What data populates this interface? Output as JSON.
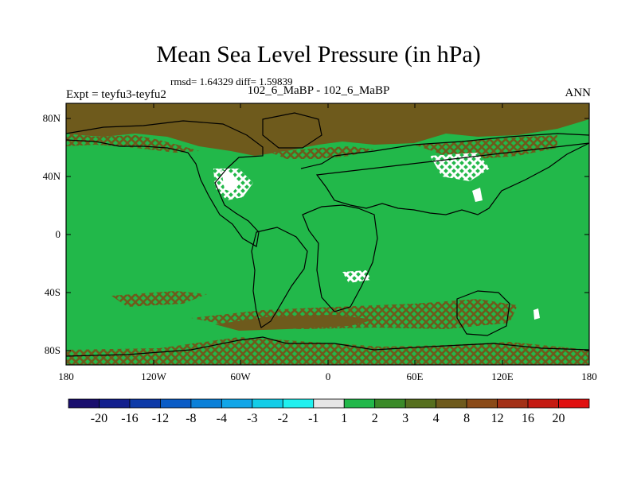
{
  "title": "Mean Sea Level Pressure (in hPa)",
  "stats": "rmsd= 1.64329 diff= 1.59839",
  "case_line": "102_6_MaBP - 102_6_MaBP",
  "experiment": "Expt = teyfu3-teyfu2",
  "season": "ANN",
  "y_ticks": [
    "80N",
    "40N",
    "0",
    "40S",
    "80S"
  ],
  "x_ticks": [
    "180",
    "120W",
    "60W",
    "0",
    "60E",
    "120E",
    "180"
  ],
  "colorbar": {
    "labels": [
      "-20",
      "-16",
      "-12",
      "-8",
      "-4",
      "-3",
      "-2",
      "-1",
      "1",
      "2",
      "3",
      "4",
      "8",
      "12",
      "16",
      "20"
    ],
    "colors": [
      "#1a0f6e",
      "#13208e",
      "#0d3aa8",
      "#0a5cc6",
      "#0b80d8",
      "#12a6e8",
      "#13cde8",
      "#21f0ef",
      "#e6e6e6",
      "#22b84a",
      "#3a8a28",
      "#566f1e",
      "#6e5a1c",
      "#8a4a18",
      "#a33016",
      "#c41a12",
      "#e01010"
    ]
  },
  "map": {
    "background_color": "#22b84a",
    "positive_anomaly_color": "#6e5a1c",
    "near_zero_color": "#ffffff"
  }
}
